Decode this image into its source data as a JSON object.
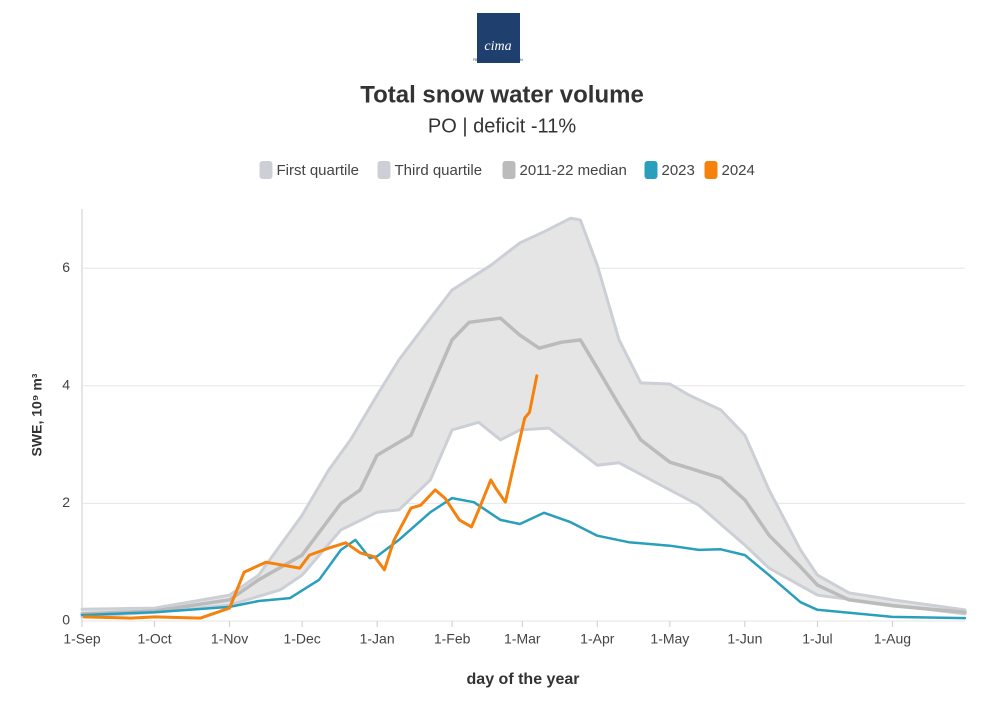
{
  "chart_data": {
    "type": "line",
    "logo": {
      "name": "cima",
      "subtitle": "RESEARCH FOUNDATION"
    },
    "title": "Total snow water volume",
    "subtitle": "PO | deficit -11%",
    "x_label": "day of the year",
    "y_label": "SWE, 10⁹ m³",
    "xlim": [
      0,
      365
    ],
    "xticks": [
      {
        "value": 0,
        "label": "1-Sep"
      },
      {
        "value": 30,
        "label": "1-Oct"
      },
      {
        "value": 61,
        "label": "1-Nov"
      },
      {
        "value": 91,
        "label": "1-Dec"
      },
      {
        "value": 122,
        "label": "1-Jan"
      },
      {
        "value": 153,
        "label": "1-Feb"
      },
      {
        "value": 182,
        "label": "1-Mar"
      },
      {
        "value": 213,
        "label": "1-Apr"
      },
      {
        "value": 243,
        "label": "1-May"
      },
      {
        "value": 274,
        "label": "1-Jun"
      },
      {
        "value": 304,
        "label": "1-Jul"
      },
      {
        "value": 335,
        "label": "1-Aug"
      }
    ],
    "ylim": [
      0,
      7
    ],
    "yticks": [
      0,
      2,
      4,
      6
    ],
    "grid": true,
    "series": [
      {
        "name": "First quartile",
        "color": "#ccd0d6",
        "x": [
          0,
          30,
          61,
          82,
          91,
          107,
          122,
          131,
          144,
          153,
          164,
          173,
          181,
          193,
          213,
          222,
          243,
          255,
          274,
          284,
          304,
          335,
          365
        ],
        "values": [
          0.07,
          0.15,
          0.27,
          0.53,
          0.78,
          1.55,
          1.85,
          1.89,
          2.4,
          3.25,
          3.38,
          3.08,
          3.25,
          3.28,
          2.65,
          2.69,
          2.23,
          1.97,
          1.29,
          0.9,
          0.44,
          0.27,
          0.12
        ]
      },
      {
        "name": "Third quartile",
        "color": "#ccd0d6",
        "x": [
          0,
          30,
          61,
          73,
          91,
          102,
          111,
          122,
          131,
          144,
          153,
          169,
          181,
          191,
          202,
          206,
          213,
          222,
          231,
          243,
          251,
          264,
          274,
          284,
          297,
          304,
          317,
          335,
          365
        ],
        "values": [
          0.2,
          0.22,
          0.44,
          0.78,
          1.8,
          2.57,
          3.08,
          3.84,
          4.44,
          5.15,
          5.63,
          6.05,
          6.43,
          6.62,
          6.85,
          6.82,
          6.05,
          4.78,
          4.05,
          4.03,
          3.84,
          3.59,
          3.16,
          2.23,
          1.21,
          0.78,
          0.48,
          0.36,
          0.19
        ]
      },
      {
        "name": "2011-22 median",
        "color": "#bbbbbb",
        "x": [
          0,
          30,
          61,
          73,
          91,
          107,
          115,
          122,
          136,
          144,
          153,
          160,
          173,
          181,
          189,
          198,
          206,
          213,
          222,
          231,
          243,
          251,
          264,
          274,
          284,
          297,
          304,
          317,
          335,
          365
        ],
        "values": [
          0.12,
          0.17,
          0.36,
          0.7,
          1.12,
          2.0,
          2.23,
          2.82,
          3.16,
          3.93,
          4.78,
          5.08,
          5.15,
          4.86,
          4.64,
          4.74,
          4.78,
          4.3,
          3.67,
          3.08,
          2.7,
          2.6,
          2.43,
          2.06,
          1.46,
          0.92,
          0.61,
          0.36,
          0.26,
          0.15
        ]
      },
      {
        "name": "2023",
        "color": "#2a9fbc",
        "x": [
          0,
          30,
          61,
          73,
          86,
          98,
          107,
          113,
          119,
          122,
          131,
          144,
          153,
          162,
          173,
          181,
          191,
          202,
          213,
          226,
          243,
          255,
          264,
          274,
          284,
          297,
          304,
          335,
          365
        ],
        "values": [
          0.1,
          0.15,
          0.24,
          0.34,
          0.39,
          0.7,
          1.21,
          1.38,
          1.07,
          1.1,
          1.38,
          1.85,
          2.09,
          2.02,
          1.72,
          1.65,
          1.84,
          1.68,
          1.45,
          1.34,
          1.28,
          1.21,
          1.22,
          1.12,
          0.78,
          0.32,
          0.19,
          0.07,
          0.05
        ]
      },
      {
        "name": "2024",
        "color": "#f5820d",
        "x": [
          1,
          20,
          30,
          49,
          61,
          67,
          76,
          90,
          94,
          102,
          109,
          115,
          121,
          125,
          129,
          136,
          140,
          146,
          150,
          156,
          161,
          164,
          169,
          171,
          175,
          179,
          183,
          185,
          188
        ],
        "values": [
          0.07,
          0.05,
          0.07,
          0.05,
          0.22,
          0.83,
          1.0,
          0.9,
          1.12,
          1.24,
          1.33,
          1.16,
          1.09,
          0.87,
          1.38,
          1.92,
          1.97,
          2.23,
          2.09,
          1.72,
          1.6,
          1.89,
          2.4,
          2.26,
          2.02,
          2.74,
          3.45,
          3.55,
          4.17
        ]
      }
    ]
  }
}
